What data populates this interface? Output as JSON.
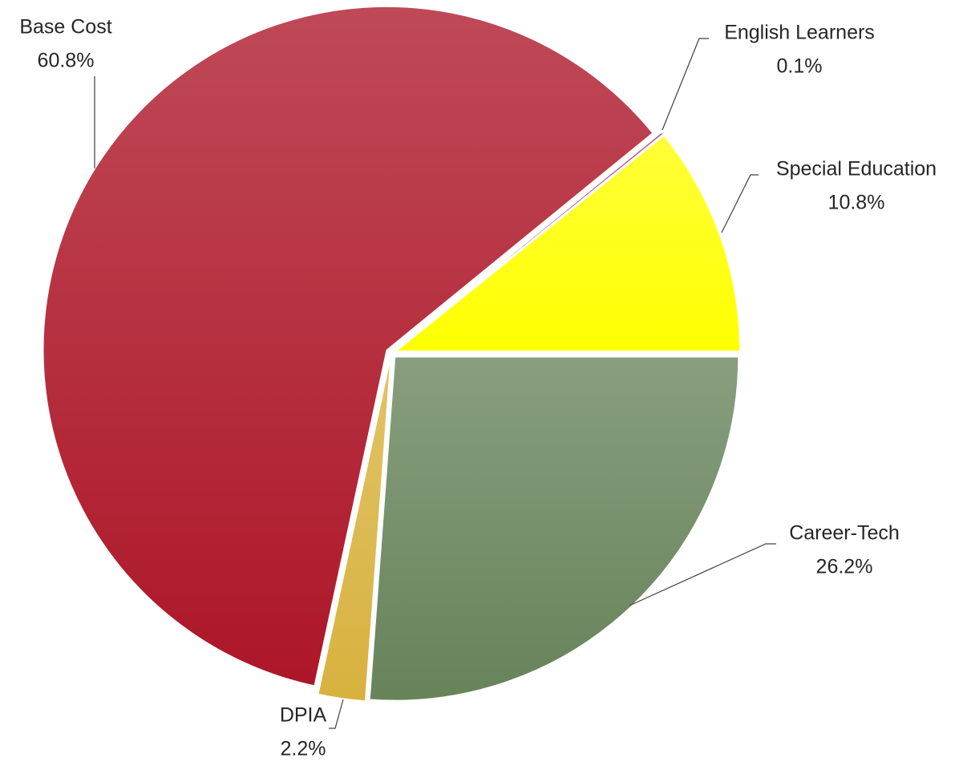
{
  "chart_data": {
    "type": "pie",
    "categories": [
      "Career-Tech",
      "DPIA",
      "Base Cost",
      "English Learners",
      "Special Education"
    ],
    "values": [
      26.2,
      2.2,
      60.8,
      0.1,
      10.8
    ],
    "value_labels": [
      "26.2%",
      "2.2%",
      "60.8%",
      "0.1%",
      "10.8%"
    ],
    "colors": [
      "#67835a",
      "#d8b23e",
      "#ad1628",
      "#a02a6a",
      "#ffff00"
    ]
  }
}
